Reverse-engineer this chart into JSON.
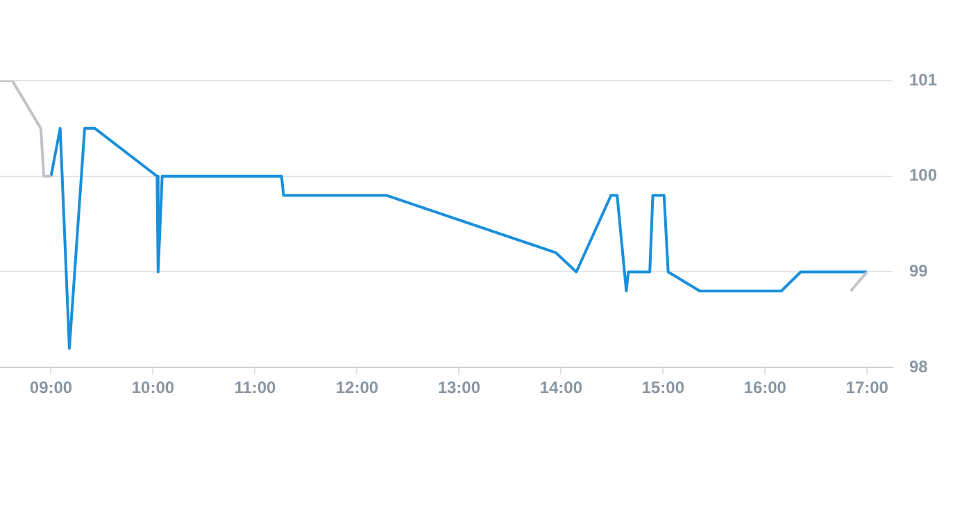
{
  "chart_data": {
    "type": "line",
    "xlim": [
      8.5,
      17.25
    ],
    "ylim": [
      98,
      101
    ],
    "xticks": [
      {
        "value": 9,
        "label": "09:00"
      },
      {
        "value": 10,
        "label": "10:00"
      },
      {
        "value": 11,
        "label": "11:00"
      },
      {
        "value": 12,
        "label": "12:00"
      },
      {
        "value": 13,
        "label": "13:00"
      },
      {
        "value": 14,
        "label": "14:00"
      },
      {
        "value": 15,
        "label": "15:00"
      },
      {
        "value": 16,
        "label": "16:00"
      },
      {
        "value": 17,
        "label": "17:00"
      }
    ],
    "yticks": [
      98,
      99,
      100,
      101
    ],
    "grid": "y",
    "marker": "none",
    "line_style": "solid",
    "series": [
      {
        "color": "#c0c4c8",
        "x": [
          8.5,
          8.62,
          8.9,
          8.93,
          9.0
        ],
        "values": [
          101,
          101,
          100.5,
          100,
          100
        ]
      },
      {
        "color": "#c0c4c8",
        "x": [
          16.84,
          17.0
        ],
        "values": [
          98.8,
          99
        ]
      },
      {
        "color": "#1a8fdb",
        "x": [
          9.0,
          9.09,
          9.18,
          9.33,
          9.43,
          10.04,
          10.05,
          10.09,
          11.26,
          11.28,
          12.29,
          13.95,
          14.15,
          14.49,
          14.55,
          14.64,
          14.66,
          14.87,
          14.9,
          15.01,
          15.05,
          15.36,
          16.16,
          16.35,
          17.0
        ],
        "values": [
          100,
          100.5,
          98.2,
          100.5,
          100.5,
          100,
          99,
          100,
          100,
          99.8,
          99.8,
          99.2,
          99,
          99.8,
          99.8,
          98.8,
          99,
          99,
          99.8,
          99.8,
          99,
          98.8,
          98.8,
          99,
          99
        ]
      }
    ]
  }
}
